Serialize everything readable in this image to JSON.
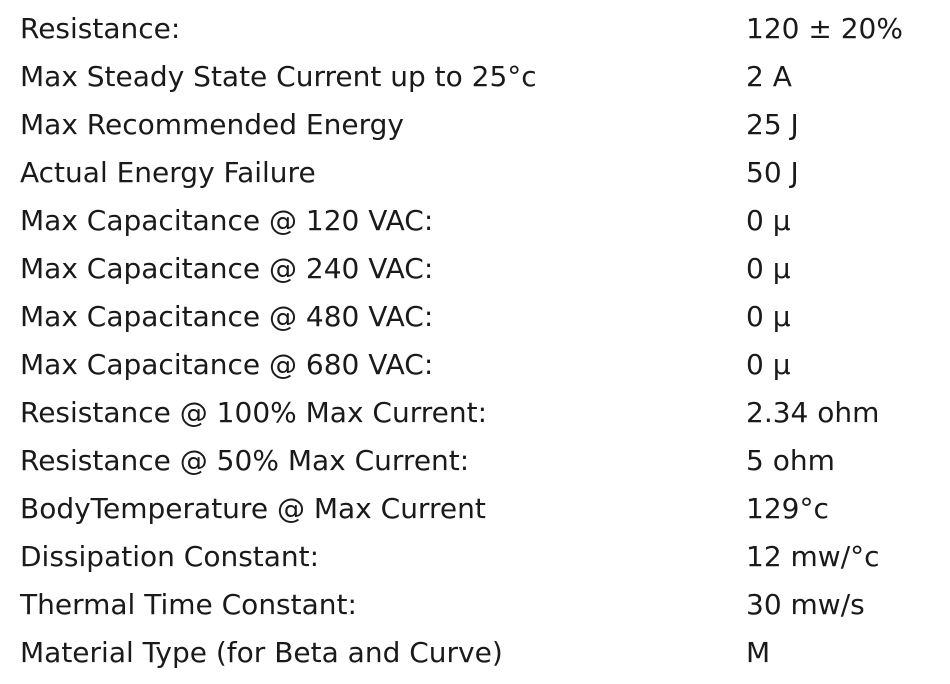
{
  "table": {
    "rows": [
      [
        "Resistance:",
        "120 ± 20%"
      ],
      [
        "Max Steady State Current up to 25°c",
        "2 A"
      ],
      [
        "Max Recommended Energy",
        "25 J"
      ],
      [
        "Actual Energy Failure",
        "50 J"
      ],
      [
        "Max Capacitance @ 120 VAC:",
        "0 µ"
      ],
      [
        "Max Capacitance @ 240 VAC:",
        "0 µ"
      ],
      [
        "Max Capacitance @ 480 VAC:",
        "0 µ"
      ],
      [
        "Max Capacitance @ 680 VAC:",
        "0 µ"
      ],
      [
        "Resistance @ 100% Max Current:",
        "2.34 ohm"
      ],
      [
        "Resistance @ 50% Max Current:",
        "5 ohm"
      ],
      [
        "BodyTemperature @ Max Current",
        "129°c"
      ],
      [
        "Dissipation Constant:",
        "12 mw/°c"
      ],
      [
        "Thermal Time Constant:",
        "30 mw/s"
      ],
      [
        "Material Type (for Beta and Curve)",
        "M"
      ]
    ]
  }
}
